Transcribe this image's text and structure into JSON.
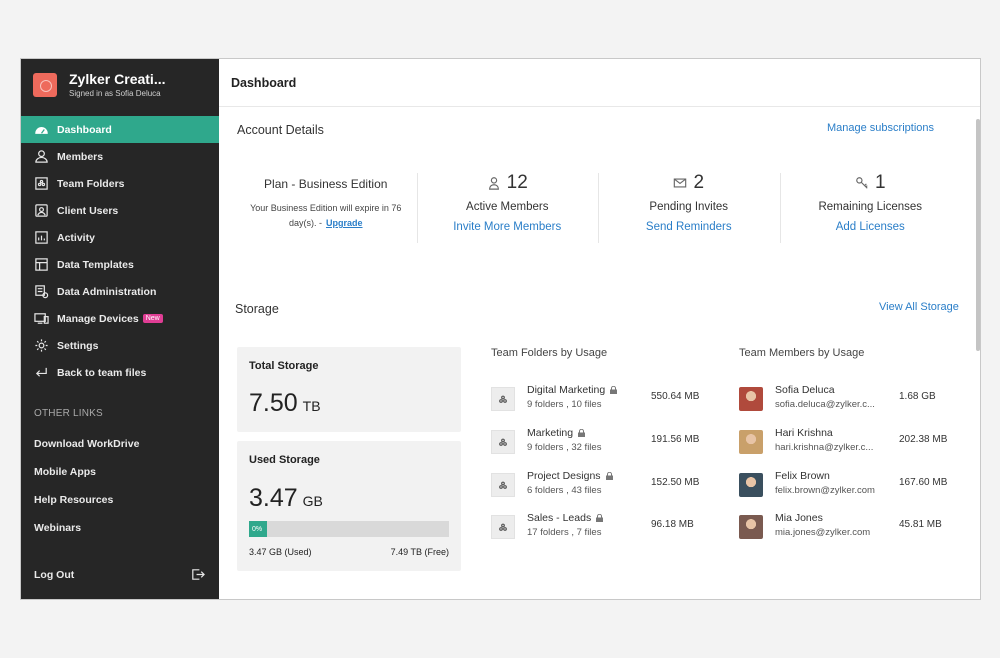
{
  "org": {
    "name": "Zylker Creati...",
    "signed_in": "Signed in as Sofia Deluca"
  },
  "nav": [
    {
      "label": "Dashboard",
      "icon": "dashboard-icon"
    },
    {
      "label": "Members",
      "icon": "members-icon"
    },
    {
      "label": "Team Folders",
      "icon": "team-folders-icon"
    },
    {
      "label": "Client Users",
      "icon": "client-users-icon"
    },
    {
      "label": "Activity",
      "icon": "activity-icon"
    },
    {
      "label": "Data Templates",
      "icon": "data-templates-icon"
    },
    {
      "label": "Data Administration",
      "icon": "data-administration-icon"
    },
    {
      "label": "Manage Devices",
      "icon": "devices-icon",
      "badge": "New"
    },
    {
      "label": "Settings",
      "icon": "gear-icon"
    },
    {
      "label": "Back to team files",
      "icon": "back-icon"
    }
  ],
  "other_links": {
    "title": "OTHER LINKS",
    "items": [
      "Download WorkDrive",
      "Mobile Apps",
      "Help Resources",
      "Webinars"
    ]
  },
  "logout": {
    "label": "Log Out"
  },
  "header": {
    "title": "Dashboard"
  },
  "account": {
    "title": "Account Details",
    "manage_link": "Manage subscriptions",
    "plan_title": "Plan - Business Edition",
    "plan_text": "Your Business Edition will expire in 76 day(s). -",
    "upgrade": "Upgrade",
    "stats": [
      {
        "count": "12",
        "label": "Active Members",
        "link": "Invite More Members",
        "icon": "user-icon"
      },
      {
        "count": "2",
        "label": "Pending Invites",
        "link": "Send Reminders",
        "icon": "mail-icon"
      },
      {
        "count": "1",
        "label": "Remaining Licenses",
        "link": "Add Licenses",
        "icon": "key-icon"
      }
    ]
  },
  "storage": {
    "title": "Storage",
    "view_all": "View All Storage",
    "total": {
      "title": "Total Storage",
      "value": "7.50",
      "unit": "TB"
    },
    "used": {
      "title": "Used Storage",
      "value": "3.47",
      "unit": "GB",
      "percent_label": "0%",
      "fill_fraction": 0.09,
      "used_label": "3.47 GB (Used)",
      "free_label": "7.49 TB (Free)"
    },
    "folders_title": "Team Folders by Usage",
    "folders": [
      {
        "name": "Digital Marketing",
        "sub": "9 folders , 10 files",
        "size": "550.64 MB"
      },
      {
        "name": "Marketing",
        "sub": "9 folders , 32 files",
        "size": "191.56 MB"
      },
      {
        "name": "Project Designs",
        "sub": "6 folders , 43 files",
        "size": "152.50 MB"
      },
      {
        "name": "Sales - Leads",
        "sub": "17 folders , 7 files",
        "size": "96.18 MB"
      }
    ],
    "members_title": "Team Members by Usage",
    "members": [
      {
        "name": "Sofia Deluca",
        "email": "sofia.deluca@zylker.c...",
        "size": "1.68 GB",
        "color": "#b04a3c"
      },
      {
        "name": "Hari Krishna",
        "email": "hari.krishna@zylker.c...",
        "size": "202.38 MB",
        "color": "#c9a06a"
      },
      {
        "name": "Felix Brown",
        "email": "felix.brown@zylker.com",
        "size": "167.60 MB",
        "color": "#3a4f5e"
      },
      {
        "name": "Mia Jones",
        "email": "mia.jones@zylker.com",
        "size": "45.81 MB",
        "color": "#7a5a50"
      }
    ]
  }
}
